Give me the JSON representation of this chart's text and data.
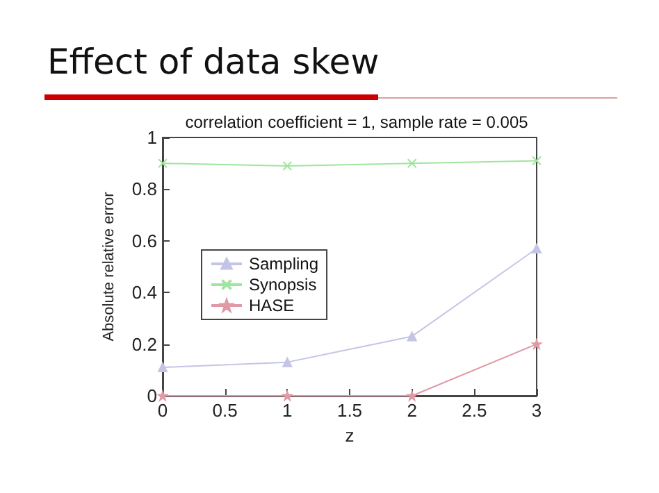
{
  "chart_data": {
    "type": "line",
    "title": "Effect of data skew",
    "subtitle": "correlation coefficient = 1, sample rate = 0.005",
    "xlabel": "z",
    "ylabel": "Absolute relative error",
    "x": [
      0,
      1,
      2,
      3
    ],
    "series": [
      {
        "name": "Sampling",
        "color": "#c4c4e6",
        "marker": "triangle",
        "values": [
          0.11,
          0.13,
          0.23,
          0.57
        ]
      },
      {
        "name": "Synopsis",
        "color": "#9ee69e",
        "marker": "cross",
        "values": [
          0.9,
          0.89,
          0.9,
          0.91
        ]
      },
      {
        "name": "HASE",
        "color": "#e09aa6",
        "marker": "star",
        "values": [
          0,
          0,
          0,
          0.2
        ]
      }
    ],
    "xlim": [
      0,
      3
    ],
    "xticks": [
      0,
      0.5,
      1,
      1.5,
      2,
      2.5,
      3
    ],
    "ylim": [
      0,
      1
    ],
    "yticks": [
      0,
      0.2,
      0.4,
      0.6,
      0.8,
      1
    ],
    "grid": false,
    "legend": "left",
    "line_style": "solid"
  }
}
